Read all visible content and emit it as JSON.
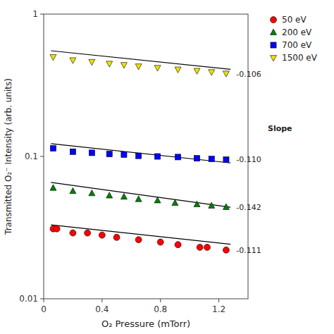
{
  "chart_data": {
    "type": "scatter",
    "x_label": "O₂ Pressure (mTorr)",
    "y_label": "Transmitted O₂⁻ Intensity (arb. units)",
    "xlim": [
      0,
      1.4
    ],
    "ylim": [
      0.01,
      1
    ],
    "xticks": [
      0,
      0.4,
      0.8,
      1.2
    ],
    "yticks": [
      0.01,
      0.1,
      1
    ],
    "log": "y",
    "grid": false,
    "legend": "right",
    "background_color": "white",
    "series": [
      {
        "name": "50 eV",
        "marker": "circle",
        "color": "red",
        "x": [
          0.065,
          0.09,
          0.2,
          0.3,
          0.4,
          0.5,
          0.65,
          0.8,
          0.92,
          1.07,
          1.12,
          1.25
        ],
        "values": [
          0.031,
          0.031,
          0.029,
          0.029,
          0.028,
          0.027,
          0.026,
          0.025,
          0.024,
          0.023,
          0.023,
          0.022
        ],
        "fit_color": "black",
        "fit_x": [
          0.05,
          1.28
        ],
        "fit_values": [
          0.033071,
          0.02415
        ]
      },
      {
        "name": "200 eV",
        "marker": "triangle-up",
        "color": "green",
        "x": [
          0.065,
          0.2,
          0.33,
          0.45,
          0.55,
          0.65,
          0.78,
          0.9,
          1.05,
          1.15,
          1.25
        ],
        "values": [
          0.06,
          0.057,
          0.055,
          0.053,
          0.052,
          0.05,
          0.049,
          0.047,
          0.046,
          0.045,
          0.044
        ],
        "fit_color": "black",
        "fit_x": [
          0.05,
          1.28
        ],
        "fit_values": [
          0.065751,
          0.043978
        ]
      },
      {
        "name": "700 eV",
        "marker": "square",
        "color": "blue",
        "x": [
          0.065,
          0.2,
          0.33,
          0.45,
          0.55,
          0.65,
          0.78,
          0.92,
          1.05,
          1.15,
          1.25
        ],
        "values": [
          0.114,
          0.108,
          0.106,
          0.104,
          0.103,
          0.101,
          0.1,
          0.099,
          0.097,
          0.096,
          0.095
        ],
        "fit_color": "black",
        "fit_x": [
          0.05,
          1.28
        ],
        "fit_values": [
          0.122884,
          0.089991
        ]
      },
      {
        "name": "1500 eV",
        "marker": "triangle-down",
        "color": "#f0e000",
        "x": [
          0.065,
          0.2,
          0.33,
          0.45,
          0.55,
          0.65,
          0.78,
          0.92,
          1.05,
          1.15,
          1.25
        ],
        "values": [
          0.5,
          0.475,
          0.462,
          0.449,
          0.44,
          0.43,
          0.42,
          0.409,
          0.4,
          0.392,
          0.383
        ],
        "fit_color": "black",
        "fit_x": [
          0.05,
          1.28
        ],
        "fit_values": [
          0.55297,
          0.409563
        ]
      }
    ],
    "annotations": [
      {
        "text": "Slope",
        "bold": true
      },
      {
        "text": "-0.111",
        "x": 1.31,
        "y": 0.022
      },
      {
        "text": "-0.142",
        "x": 1.31,
        "y": 0.044
      },
      {
        "text": "-0.110",
        "x": 1.31,
        "y": 0.095
      },
      {
        "text": "-0.106",
        "x": 1.31,
        "y": 0.38
      }
    ]
  }
}
